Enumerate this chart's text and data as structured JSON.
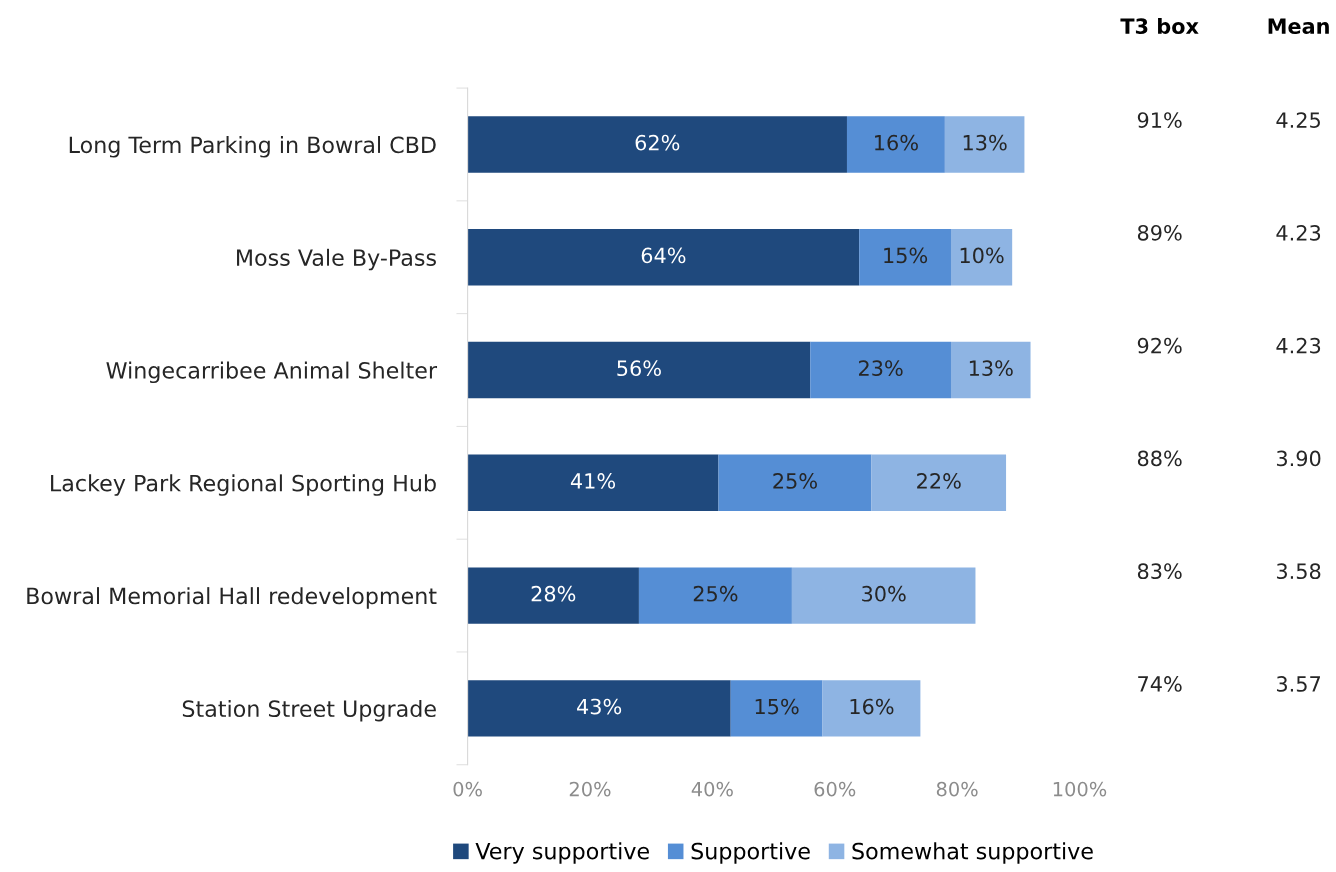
{
  "chart_data": {
    "type": "bar",
    "orientation": "horizontal",
    "stacked": true,
    "categories": [
      "Long Term Parking in Bowral CBD",
      "Moss Vale By-Pass",
      "Wingecarribee Animal Shelter",
      "Lackey Park Regional Sporting Hub",
      "Bowral Memorial Hall redevelopment",
      "Station Street Upgrade"
    ],
    "series": [
      {
        "name": "Very supportive",
        "color": "#1f497d",
        "values": [
          62,
          64,
          56,
          41,
          28,
          43
        ],
        "value_labels": [
          "62%",
          "64%",
          "56%",
          "41%",
          "28%",
          "43%"
        ]
      },
      {
        "name": "Supportive",
        "color": "#558ed5",
        "values": [
          16,
          15,
          23,
          25,
          25,
          15
        ],
        "value_labels": [
          "16%",
          "15%",
          "23%",
          "25%",
          "25%",
          "15%"
        ]
      },
      {
        "name": "Somewhat supportive",
        "color": "#8eb4e3",
        "values": [
          13,
          10,
          13,
          22,
          30,
          16
        ],
        "value_labels": [
          "13%",
          "10%",
          "13%",
          "22%",
          "30%",
          "16%"
        ]
      }
    ],
    "xlim": [
      0,
      100
    ],
    "xticks": [
      {
        "value": 0,
        "label": "0%"
      },
      {
        "value": 20,
        "label": "20%"
      },
      {
        "value": 40,
        "label": "40%"
      },
      {
        "value": 60,
        "label": "60%"
      },
      {
        "value": 80,
        "label": "80%"
      },
      {
        "value": 100,
        "label": "100%"
      }
    ],
    "grid": false,
    "legend": "bottom",
    "annotations": [
      "T3 box",
      "Mean",
      "91%",
      "4.25",
      "89%",
      "4.23",
      "92%",
      "4.23",
      "88%",
      "3.90",
      "83%",
      "3.58",
      "74%",
      "3.57"
    ]
  }
}
